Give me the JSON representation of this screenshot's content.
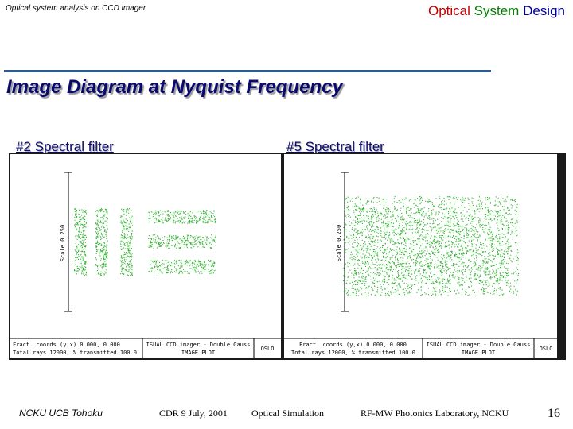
{
  "header": {
    "left_text": "Optical system analysis on CCD imager",
    "right_title": {
      "w1": "Optical",
      "w2": "System",
      "w3": "Design"
    },
    "accent_colors": {
      "optical": "#c00000",
      "system": "#008000",
      "design": "#0000a0",
      "rule": "#2f5a96",
      "title": "#0a0a6e"
    }
  },
  "title": "Image Diagram at Nyquist Frequency",
  "panels": [
    {
      "subtitle": "#2 Spectral filter",
      "scale_label": "Scale 0.250",
      "footer": {
        "line1": "Fract. coords (y,x) 0.000, 0.000",
        "line2": "Total rays 12000, % transmitted 100.0",
        "title1": "ISUAL CCD imager - Double Gauss",
        "title2": "IMAGE PLOT",
        "logo": "OSLO"
      }
    },
    {
      "subtitle": "#5 Spectral filter",
      "scale_label": "Scale 0.250",
      "footer": {
        "line1": "Fract. coords (y,x) 0.000, 0.000",
        "line2": "Total rays 12000, % transmitted 100.0",
        "title1": "ISUAL CCD imager - Double Gauss",
        "title2": "IMAGE PLOT",
        "logo": "OSLO"
      }
    }
  ],
  "footer": {
    "institutions": "NCKU   UCB   Tohoku",
    "date": "CDR  9 July, 2001",
    "topic": "Optical Simulation",
    "lab": "RF-MW Photonics Laboratory,   NCKU",
    "page": "16"
  }
}
